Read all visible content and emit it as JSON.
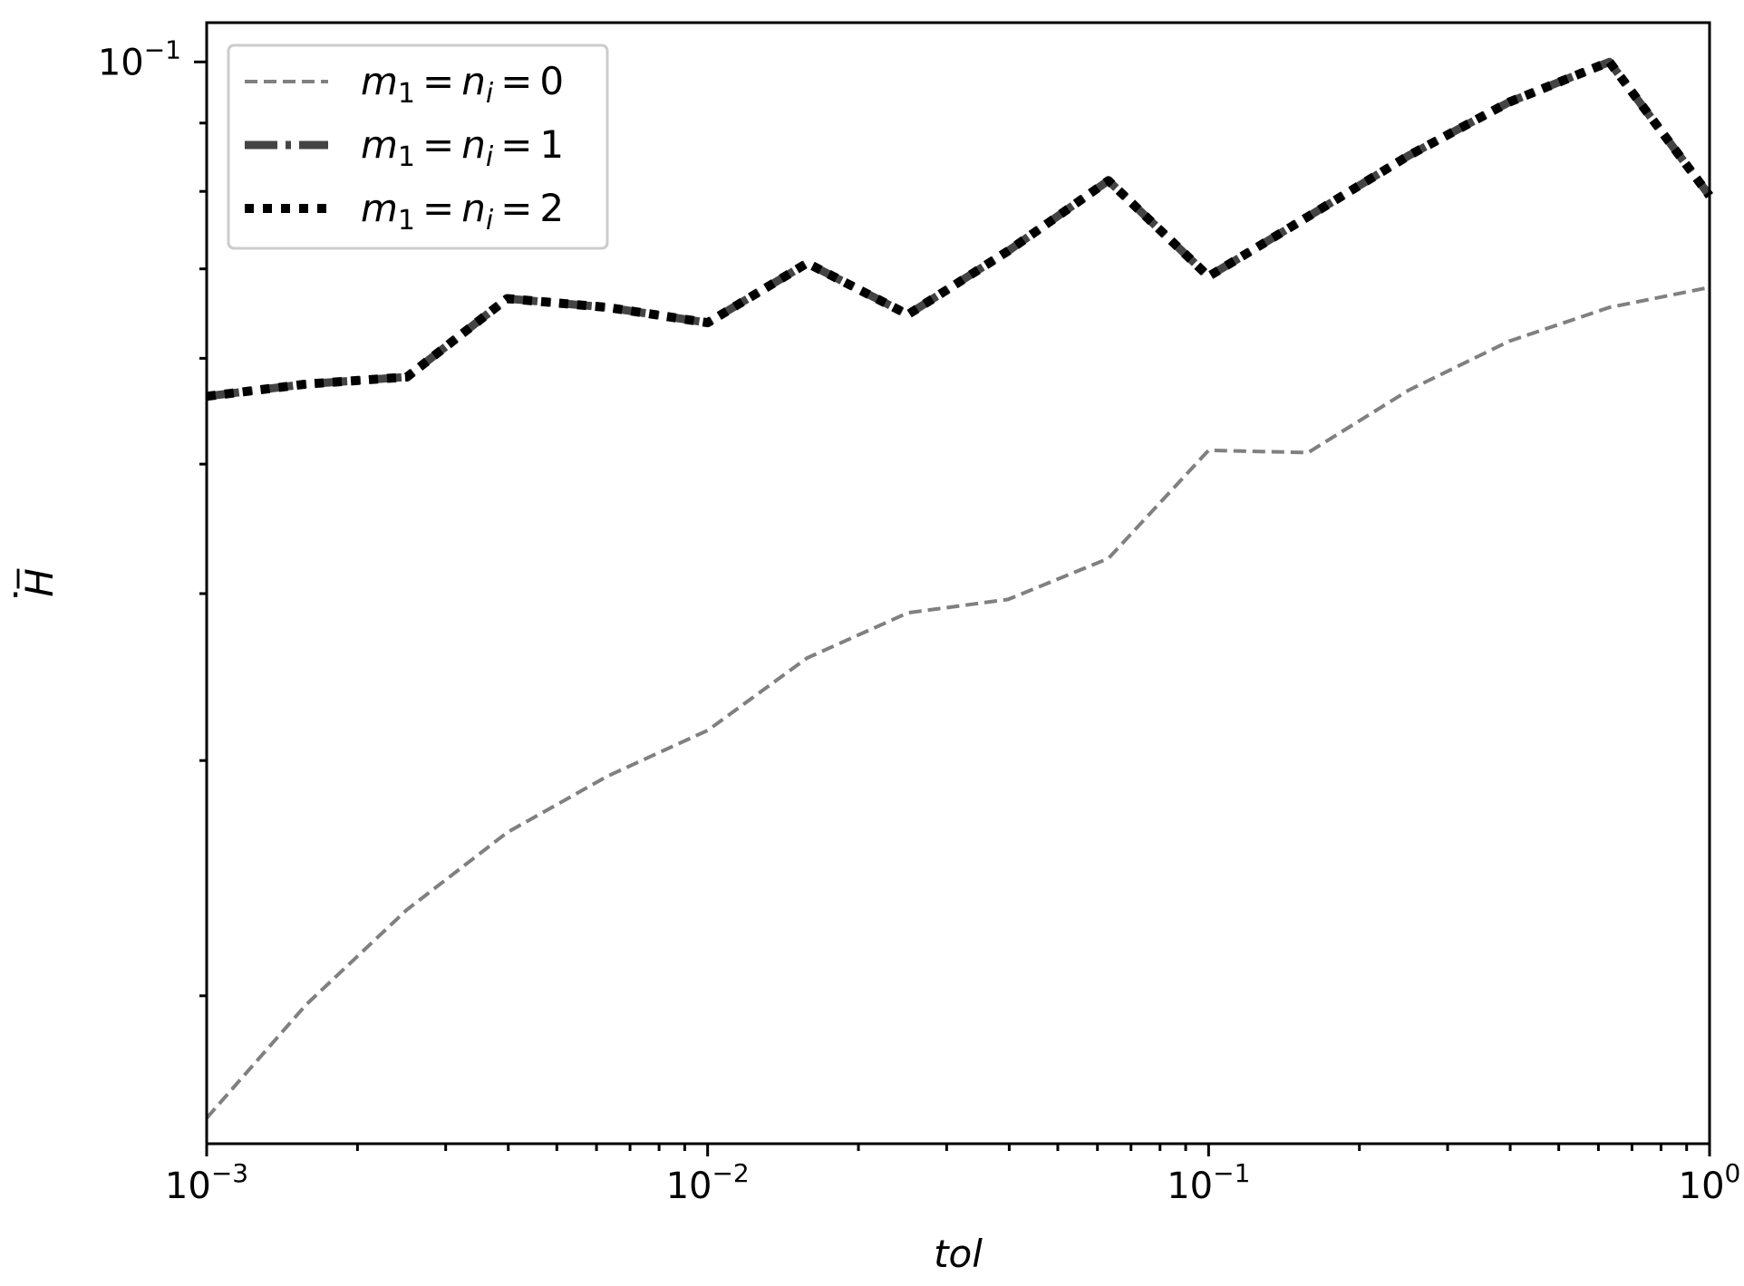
{
  "chart_data": {
    "type": "line",
    "xscale": "log",
    "yscale": "log",
    "xlim": [
      0.001,
      1
    ],
    "ylim": [
      0.0155,
      0.107
    ],
    "xlabel": "tol",
    "ylabel": "H̅",
    "grid": false,
    "legend_position": "top-left",
    "x_ticks": [
      {
        "value": 0.001,
        "base": "10",
        "exp": "−3"
      },
      {
        "value": 0.01,
        "base": "10",
        "exp": "−2"
      },
      {
        "value": 0.1,
        "base": "10",
        "exp": "−1"
      },
      {
        "value": 1,
        "base": "10",
        "exp": "0"
      }
    ],
    "y_ticks": [
      {
        "value": 0.1,
        "base": "10",
        "exp": "−1"
      }
    ],
    "x": [
      0.001,
      0.00158,
      0.00251,
      0.00398,
      0.00631,
      0.01,
      0.0158,
      0.0251,
      0.0398,
      0.0631,
      0.1,
      0.158,
      0.251,
      0.398,
      0.631,
      1.0
    ],
    "series": [
      {
        "name": "m₁ = nᵢ = 0",
        "legend": {
          "a": "m",
          "a_sub": "1",
          "b": "n",
          "b_sub": "i",
          "value": "0"
        },
        "color": "#808080",
        "style": "dashed",
        "values": [
          0.0162,
          0.0197,
          0.0232,
          0.0265,
          0.0292,
          0.0316,
          0.0358,
          0.0387,
          0.0396,
          0.0425,
          0.0512,
          0.051,
          0.0568,
          0.0618,
          0.0655,
          0.0678
        ]
      },
      {
        "name": "m₁ = nᵢ = 1",
        "legend": {
          "a": "m",
          "a_sub": "1",
          "b": "n",
          "b_sub": "i",
          "value": "1"
        },
        "color": "#444444",
        "style": "dashdot",
        "values": [
          0.0562,
          0.0574,
          0.0581,
          0.0665,
          0.0655,
          0.0638,
          0.0707,
          0.0647,
          0.0722,
          0.0815,
          0.0691,
          0.0766,
          0.0851,
          0.0933,
          0.1,
          0.0794
        ]
      },
      {
        "name": "m₁ = nᵢ = 2",
        "legend": {
          "a": "m",
          "a_sub": "1",
          "b": "n",
          "b_sub": "i",
          "value": "2"
        },
        "color": "#000000",
        "style": "dotted",
        "values": [
          0.0562,
          0.0574,
          0.0581,
          0.0665,
          0.0655,
          0.0638,
          0.0707,
          0.0647,
          0.0722,
          0.0815,
          0.0691,
          0.0766,
          0.0851,
          0.0933,
          0.1,
          0.0794
        ]
      }
    ]
  }
}
